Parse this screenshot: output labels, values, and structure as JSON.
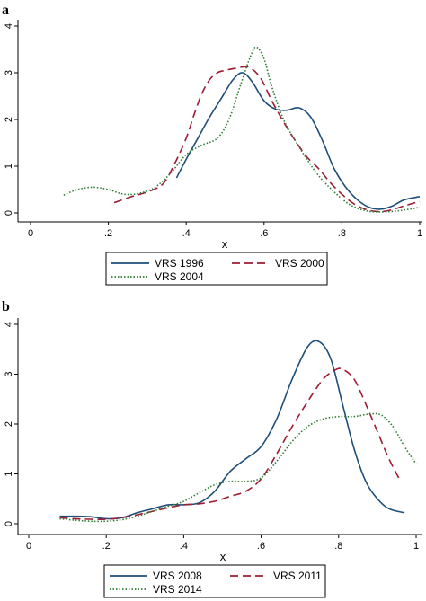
{
  "panels": [
    {
      "label": "a"
    },
    {
      "label": "b"
    }
  ],
  "chart_data": [
    {
      "type": "line",
      "panel": "a",
      "xlabel": "x",
      "ylabel": "",
      "xlim": [
        0,
        1
      ],
      "ylim": [
        0,
        4
      ],
      "xticks": [
        0,
        0.2,
        0.4,
        0.6,
        0.8,
        1
      ],
      "xtick_labels": [
        "0",
        ".2",
        ".4",
        ".6",
        ".8",
        "1"
      ],
      "yticks": [
        0,
        1,
        2,
        3,
        4
      ],
      "ytick_labels": [
        "0",
        "1",
        "2",
        "3",
        "4"
      ],
      "grid": false,
      "legend_position": "bottom",
      "series": [
        {
          "name": "VRS 1996",
          "color": "#1f4e79",
          "dash": "solid",
          "x": [
            0.375,
            0.4,
            0.43,
            0.46,
            0.49,
            0.52,
            0.545,
            0.57,
            0.6,
            0.63,
            0.66,
            0.69,
            0.72,
            0.75,
            0.78,
            0.81,
            0.84,
            0.87,
            0.9,
            0.93,
            0.96,
            1.0
          ],
          "y": [
            0.75,
            1.15,
            1.6,
            2.05,
            2.45,
            2.85,
            3.0,
            2.8,
            2.4,
            2.22,
            2.2,
            2.25,
            2.05,
            1.55,
            0.95,
            0.55,
            0.28,
            0.12,
            0.08,
            0.15,
            0.28,
            0.35
          ]
        },
        {
          "name": "VRS 2000",
          "color": "#9e1b32",
          "dash": "long-dash",
          "x": [
            0.215,
            0.26,
            0.3,
            0.34,
            0.37,
            0.4,
            0.42,
            0.44,
            0.46,
            0.48,
            0.5,
            0.53,
            0.56,
            0.59,
            0.62,
            0.65,
            0.68,
            0.71,
            0.74,
            0.77,
            0.8,
            0.83,
            0.86,
            0.89,
            0.92,
            0.96,
            1.0
          ],
          "y": [
            0.22,
            0.35,
            0.45,
            0.62,
            1.05,
            1.6,
            2.1,
            2.55,
            2.85,
            3.0,
            3.05,
            3.1,
            3.12,
            2.9,
            2.4,
            1.95,
            1.55,
            1.2,
            0.95,
            0.65,
            0.4,
            0.2,
            0.08,
            0.03,
            0.05,
            0.15,
            0.25
          ]
        },
        {
          "name": "VRS 2004",
          "color": "#2e7d32",
          "dash": "dotted",
          "x": [
            0.085,
            0.12,
            0.16,
            0.2,
            0.24,
            0.28,
            0.32,
            0.36,
            0.4,
            0.44,
            0.48,
            0.51,
            0.54,
            0.565,
            0.58,
            0.6,
            0.62,
            0.65,
            0.68,
            0.71,
            0.74,
            0.78,
            0.82,
            0.86,
            0.9,
            0.95,
            1.0
          ],
          "y": [
            0.38,
            0.5,
            0.55,
            0.5,
            0.4,
            0.42,
            0.55,
            0.85,
            1.25,
            1.45,
            1.6,
            2.0,
            2.75,
            3.35,
            3.55,
            3.3,
            2.7,
            2.0,
            1.55,
            1.15,
            0.8,
            0.45,
            0.18,
            0.05,
            0.02,
            0.05,
            0.12
          ]
        }
      ]
    },
    {
      "type": "line",
      "panel": "b",
      "xlabel": "x",
      "ylabel": "",
      "xlim": [
        0,
        1
      ],
      "ylim": [
        0,
        4
      ],
      "xticks": [
        0,
        0.2,
        0.4,
        0.6,
        0.8,
        1
      ],
      "xtick_labels": [
        "0",
        ".2",
        ".4",
        ".6",
        ".8",
        "1"
      ],
      "yticks": [
        0,
        1,
        2,
        3,
        4
      ],
      "ytick_labels": [
        "0",
        "1",
        "2",
        "3",
        "4"
      ],
      "grid": false,
      "legend_position": "bottom",
      "series": [
        {
          "name": "VRS 2008",
          "color": "#1f4e79",
          "dash": "solid",
          "x": [
            0.08,
            0.12,
            0.16,
            0.2,
            0.24,
            0.28,
            0.32,
            0.36,
            0.4,
            0.44,
            0.48,
            0.52,
            0.56,
            0.6,
            0.64,
            0.68,
            0.72,
            0.75,
            0.78,
            0.81,
            0.84,
            0.87,
            0.9,
            0.93,
            0.97
          ],
          "y": [
            0.15,
            0.15,
            0.14,
            0.1,
            0.12,
            0.22,
            0.3,
            0.38,
            0.38,
            0.42,
            0.65,
            1.05,
            1.3,
            1.55,
            2.1,
            2.9,
            3.55,
            3.65,
            3.3,
            2.4,
            1.5,
            0.85,
            0.5,
            0.3,
            0.22
          ]
        },
        {
          "name": "VRS 2011",
          "color": "#9e1b32",
          "dash": "long-dash",
          "x": [
            0.08,
            0.12,
            0.16,
            0.2,
            0.24,
            0.28,
            0.32,
            0.36,
            0.4,
            0.44,
            0.48,
            0.52,
            0.56,
            0.6,
            0.64,
            0.68,
            0.72,
            0.76,
            0.79,
            0.81,
            0.84,
            0.87,
            0.9,
            0.93,
            0.96
          ],
          "y": [
            0.12,
            0.1,
            0.09,
            0.09,
            0.12,
            0.18,
            0.25,
            0.32,
            0.38,
            0.4,
            0.45,
            0.55,
            0.65,
            0.9,
            1.4,
            1.95,
            2.45,
            2.9,
            3.08,
            3.1,
            2.9,
            2.4,
            1.85,
            1.3,
            0.85
          ]
        },
        {
          "name": "VRS 2014",
          "color": "#2e7d32",
          "dash": "dotted",
          "x": [
            0.08,
            0.12,
            0.16,
            0.2,
            0.24,
            0.28,
            0.32,
            0.36,
            0.4,
            0.44,
            0.48,
            0.52,
            0.56,
            0.6,
            0.64,
            0.68,
            0.72,
            0.76,
            0.8,
            0.84,
            0.88,
            0.91,
            0.94,
            0.97,
            1.0
          ],
          "y": [
            0.1,
            0.07,
            0.05,
            0.05,
            0.08,
            0.15,
            0.25,
            0.35,
            0.45,
            0.62,
            0.78,
            0.85,
            0.85,
            0.92,
            1.25,
            1.65,
            1.95,
            2.1,
            2.15,
            2.15,
            2.2,
            2.18,
            1.95,
            1.55,
            1.2
          ]
        }
      ]
    }
  ]
}
